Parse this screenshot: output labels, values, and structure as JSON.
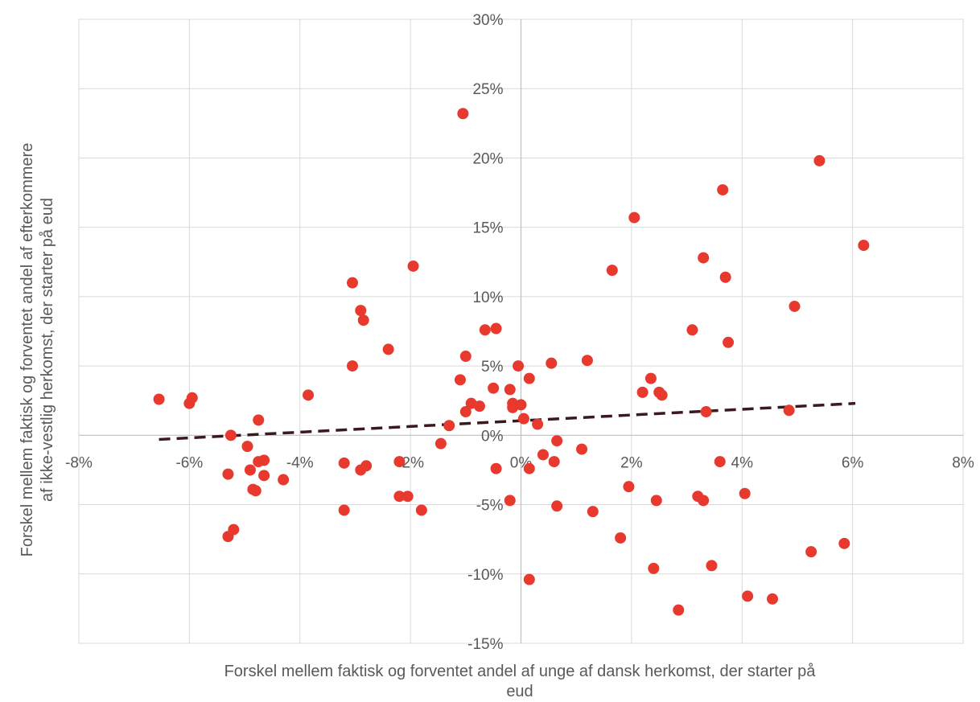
{
  "chart_data": {
    "type": "scatter",
    "title": "",
    "xlabel_lines": [
      "Forskel mellem faktisk og forventet andel af unge af dansk herkomst, der starter på",
      "eud"
    ],
    "ylabel_lines": [
      "Forskel mellem faktisk og forventet andel af efterkommere",
      "af ikke-vestlig herkomst, der starter på eud"
    ],
    "xlim": [
      -8,
      8
    ],
    "ylim": [
      -15,
      30
    ],
    "x_ticks": [
      -8,
      -6,
      -4,
      -2,
      0,
      2,
      4,
      6,
      8
    ],
    "x_tick_labels": [
      "-8%",
      "-6%",
      "-4%",
      "-2%",
      "0%",
      "2%",
      "4%",
      "6%",
      "8%"
    ],
    "y_ticks": [
      -15,
      -10,
      -5,
      0,
      5,
      10,
      15,
      20,
      25,
      30
    ],
    "y_tick_labels": [
      "-15%",
      "-10%",
      "-5%",
      "0%",
      "5%",
      "10%",
      "15%",
      "20%",
      "25%",
      "30%"
    ],
    "grid": true,
    "point_color": "#e8392e",
    "trendline_color": "#3b1a1f",
    "trendline": {
      "x": [
        -6.55,
        6.05
      ],
      "y": [
        -0.3,
        2.3
      ]
    },
    "points": [
      [
        -6.55,
        2.6
      ],
      [
        -6.0,
        2.3
      ],
      [
        -5.95,
        2.7
      ],
      [
        -5.3,
        -2.8
      ],
      [
        -5.3,
        -7.3
      ],
      [
        -5.25,
        0.0
      ],
      [
        -5.2,
        -6.8
      ],
      [
        -4.95,
        -0.8
      ],
      [
        -4.9,
        -2.5
      ],
      [
        -4.85,
        -3.9
      ],
      [
        -4.8,
        -4.0
      ],
      [
        -4.75,
        -1.9
      ],
      [
        -4.75,
        1.1
      ],
      [
        -4.65,
        -1.8
      ],
      [
        -4.65,
        -2.9
      ],
      [
        -4.3,
        -3.2
      ],
      [
        -3.85,
        2.9
      ],
      [
        -3.2,
        -2.0
      ],
      [
        -3.2,
        -5.4
      ],
      [
        -3.05,
        11.0
      ],
      [
        -3.05,
        5.0
      ],
      [
        -2.9,
        9.0
      ],
      [
        -2.9,
        -2.5
      ],
      [
        -2.85,
        8.3
      ],
      [
        -2.8,
        -2.2
      ],
      [
        -2.4,
        6.2
      ],
      [
        -2.2,
        -1.9
      ],
      [
        -2.2,
        -4.4
      ],
      [
        -2.05,
        -4.4
      ],
      [
        -1.95,
        12.2
      ],
      [
        -1.8,
        -5.4
      ],
      [
        -1.45,
        -0.6
      ],
      [
        -1.3,
        0.7
      ],
      [
        -1.1,
        4.0
      ],
      [
        -1.05,
        23.2
      ],
      [
        -1.0,
        1.7
      ],
      [
        -1.0,
        5.7
      ],
      [
        -0.9,
        2.3
      ],
      [
        -0.75,
        2.1
      ],
      [
        -0.65,
        7.6
      ],
      [
        -0.5,
        3.4
      ],
      [
        -0.45,
        7.7
      ],
      [
        -0.45,
        -2.4
      ],
      [
        -0.2,
        3.3
      ],
      [
        -0.2,
        -4.7
      ],
      [
        -0.15,
        2.3
      ],
      [
        -0.15,
        2.0
      ],
      [
        -0.05,
        5.0
      ],
      [
        0.0,
        2.2
      ],
      [
        0.05,
        1.2
      ],
      [
        0.15,
        4.1
      ],
      [
        0.15,
        -2.4
      ],
      [
        0.15,
        -10.4
      ],
      [
        0.3,
        0.8
      ],
      [
        0.4,
        -1.4
      ],
      [
        0.55,
        5.2
      ],
      [
        0.6,
        -1.9
      ],
      [
        0.65,
        -0.4
      ],
      [
        0.65,
        -5.1
      ],
      [
        1.1,
        -1.0
      ],
      [
        1.2,
        5.4
      ],
      [
        1.3,
        -5.5
      ],
      [
        1.65,
        11.9
      ],
      [
        1.8,
        -7.4
      ],
      [
        1.95,
        -3.7
      ],
      [
        2.05,
        15.7
      ],
      [
        2.2,
        3.1
      ],
      [
        2.35,
        4.1
      ],
      [
        2.4,
        -9.6
      ],
      [
        2.45,
        -4.7
      ],
      [
        2.5,
        3.1
      ],
      [
        2.55,
        2.9
      ],
      [
        2.85,
        -12.6
      ],
      [
        3.1,
        7.6
      ],
      [
        3.2,
        -4.4
      ],
      [
        3.3,
        12.8
      ],
      [
        3.3,
        -4.7
      ],
      [
        3.35,
        1.7
      ],
      [
        3.45,
        -9.4
      ],
      [
        3.6,
        -1.9
      ],
      [
        3.65,
        17.7
      ],
      [
        3.7,
        11.4
      ],
      [
        3.75,
        6.7
      ],
      [
        4.05,
        -4.2
      ],
      [
        4.1,
        -11.6
      ],
      [
        4.55,
        -11.8
      ],
      [
        4.85,
        1.8
      ],
      [
        4.95,
        9.3
      ],
      [
        5.25,
        -8.4
      ],
      [
        5.4,
        19.8
      ],
      [
        5.85,
        -7.8
      ],
      [
        6.2,
        13.7
      ]
    ]
  }
}
